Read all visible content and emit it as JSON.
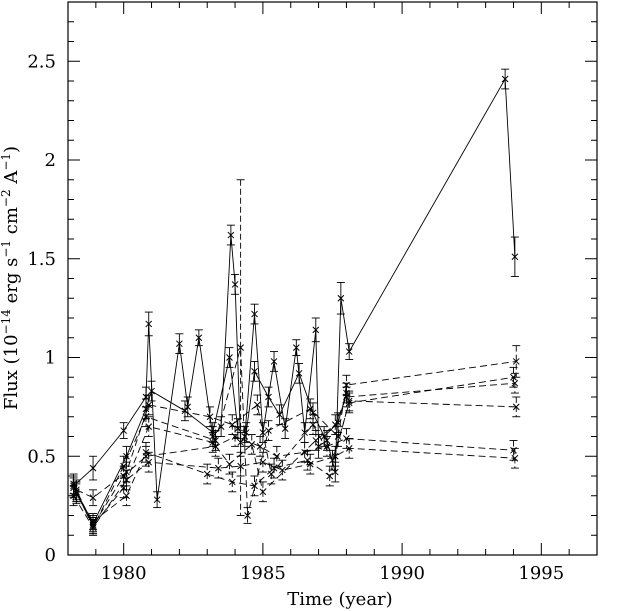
{
  "chart_data": {
    "type": "line",
    "title": "",
    "xlabel": "Time (year)",
    "ylabel_parts": {
      "prefix": "Flux (10",
      "exp1": "−14",
      "mid1": " erg s",
      "exp2": "−1",
      "mid2": " cm",
      "exp3": "−2",
      "mid3": " A",
      "exp4": "−1",
      "suffix": ")"
    },
    "xlim": [
      1978,
      1997
    ],
    "ylim": [
      0,
      2.8
    ],
    "xticks": [
      1980,
      1985,
      1990,
      1995
    ],
    "xtick_labels": [
      "1980",
      "1985",
      "1990",
      "1995"
    ],
    "yticks": [
      0,
      0.5,
      1,
      1.5,
      2,
      2.5
    ],
    "ytick_labels": [
      "0",
      "0.5",
      "1",
      "1.5",
      "2",
      "2.5"
    ],
    "grid": false,
    "series": [
      {
        "style": "solid",
        "x": [
          1978.2,
          1978.9,
          1980.0,
          1980.8,
          1980.9,
          1981.2,
          1982.0,
          1982.3,
          1982.7,
          1983.2,
          1983.5,
          1983.85,
          1984.0,
          1984.2,
          1984.35,
          1984.7,
          1985.0,
          1985.4,
          1985.8,
          1986.2,
          1986.5,
          1986.9,
          1987.0,
          1987.3,
          1987.6,
          1987.8,
          1988.1,
          1993.7,
          1994.05
        ],
        "y": [
          0.35,
          0.44,
          0.63,
          0.8,
          1.17,
          0.28,
          1.07,
          0.75,
          1.1,
          0.6,
          0.65,
          1.62,
          1.37,
          0.57,
          0.6,
          1.22,
          0.62,
          0.98,
          0.64,
          1.05,
          0.62,
          1.14,
          0.55,
          0.58,
          0.42,
          1.3,
          1.03,
          2.41,
          1.51
        ],
        "err": [
          0.05,
          0.06,
          0.04,
          0.05,
          0.06,
          0.04,
          0.05,
          0.05,
          0.04,
          0.05,
          0.05,
          0.05,
          0.05,
          0.05,
          0.05,
          0.05,
          0.05,
          0.05,
          0.05,
          0.04,
          0.05,
          0.06,
          0.06,
          0.05,
          0.05,
          0.08,
          0.04,
          0.05,
          0.1
        ]
      },
      {
        "style": "solid",
        "x": [
          1978.3,
          1978.9,
          1980.1,
          1980.8,
          1981.0,
          1982.2,
          1983.2,
          1983.8,
          1984.1,
          1984.4,
          1984.7,
          1985.2,
          1985.6,
          1986.3,
          1986.8,
          1987.2,
          1987.7,
          1988.0
        ],
        "y": [
          0.32,
          0.16,
          0.5,
          0.74,
          0.83,
          0.73,
          0.62,
          1.0,
          0.64,
          0.62,
          0.93,
          0.8,
          0.71,
          0.92,
          0.72,
          0.6,
          0.67,
          0.82
        ],
        "err": [
          0.05,
          0.04,
          0.05,
          0.05,
          0.05,
          0.05,
          0.05,
          0.05,
          0.05,
          0.05,
          0.05,
          0.05,
          0.05,
          0.05,
          0.05,
          0.05,
          0.05,
          0.05
        ]
      },
      {
        "style": "dashed",
        "x": [
          1978.2,
          1978.9,
          1980.0,
          1980.8,
          1983.3,
          1984.2,
          1984.45,
          1985.2,
          1986.7,
          1987.7,
          1988.0,
          1994.1
        ],
        "y": [
          0.3,
          0.14,
          0.45,
          0.7,
          0.58,
          1.05,
          0.2,
          0.63,
          0.74,
          0.6,
          0.86,
          0.98
        ],
        "err": [
          0.05,
          0.04,
          0.05,
          0.05,
          0.05,
          0.85,
          0.04,
          0.05,
          0.05,
          0.05,
          0.05,
          0.08
        ]
      },
      {
        "style": "dashed",
        "x": [
          1978.3,
          1978.9,
          1980.1,
          1980.9,
          1983.1,
          1983.9,
          1984.8,
          1985.3,
          1986.8,
          1987.5,
          1988.1,
          1994.0
        ],
        "y": [
          0.33,
          0.29,
          0.42,
          0.76,
          0.7,
          0.66,
          0.76,
          0.41,
          0.66,
          0.48,
          0.77,
          0.9
        ],
        "err": [
          0.05,
          0.04,
          0.05,
          0.05,
          0.05,
          0.05,
          0.05,
          0.05,
          0.05,
          0.05,
          0.05,
          0.05
        ]
      },
      {
        "style": "dashed",
        "x": [
          1978.2,
          1978.9,
          1980.0,
          1980.9,
          1983.2,
          1983.8,
          1984.6,
          1985.0,
          1986.9,
          1987.6,
          1988.0,
          1994.05
        ],
        "y": [
          0.36,
          0.15,
          0.34,
          0.65,
          0.57,
          0.46,
          0.56,
          0.32,
          0.58,
          0.66,
          0.8,
          0.87
        ],
        "err": [
          0.05,
          0.04,
          0.05,
          0.05,
          0.05,
          0.05,
          0.05,
          0.05,
          0.05,
          0.05,
          0.05,
          0.05
        ]
      },
      {
        "style": "dashed",
        "x": [
          1978.3,
          1978.9,
          1980.1,
          1980.8,
          1983.0,
          1983.9,
          1984.7,
          1985.4,
          1986.6,
          1987.4,
          1988.1,
          1994.1
        ],
        "y": [
          0.31,
          0.17,
          0.3,
          0.52,
          0.41,
          0.37,
          0.35,
          0.44,
          0.48,
          0.4,
          0.78,
          0.75
        ],
        "err": [
          0.05,
          0.04,
          0.05,
          0.05,
          0.05,
          0.05,
          0.05,
          0.05,
          0.05,
          0.05,
          0.05,
          0.05
        ]
      },
      {
        "style": "dashed",
        "x": [
          1978.2,
          1978.9,
          1980.0,
          1980.8,
          1983.3,
          1984.0,
          1984.9,
          1985.5,
          1986.5,
          1987.3,
          1988.0,
          1994.0
        ],
        "y": [
          0.34,
          0.15,
          0.4,
          0.5,
          0.55,
          0.6,
          0.55,
          0.5,
          0.52,
          0.55,
          0.59,
          0.53
        ],
        "err": [
          0.05,
          0.04,
          0.05,
          0.05,
          0.05,
          0.05,
          0.05,
          0.05,
          0.05,
          0.05,
          0.05,
          0.05
        ]
      },
      {
        "style": "dashed",
        "x": [
          1978.3,
          1978.9,
          1980.1,
          1980.9,
          1983.4,
          1984.2,
          1985.0,
          1985.7,
          1986.7,
          1987.6,
          1988.1,
          1994.05
        ],
        "y": [
          0.32,
          0.14,
          0.38,
          0.47,
          0.44,
          0.45,
          0.47,
          0.43,
          0.46,
          0.5,
          0.54,
          0.49
        ],
        "err": [
          0.05,
          0.04,
          0.05,
          0.05,
          0.05,
          0.05,
          0.05,
          0.05,
          0.05,
          0.05,
          0.05,
          0.05
        ]
      }
    ]
  }
}
